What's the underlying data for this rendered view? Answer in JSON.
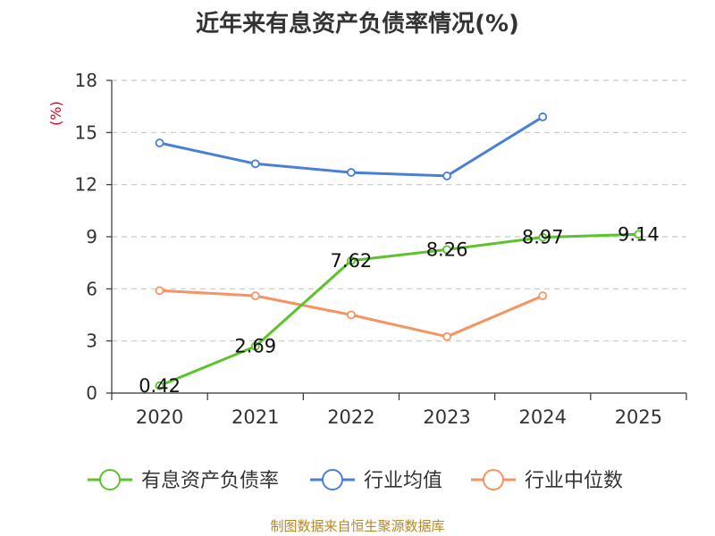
{
  "chart_data": {
    "type": "line",
    "title": "近年来有息资产负债率情况(%)",
    "ylabel": "(%)",
    "xlabel": "",
    "categories": [
      "2020",
      "2021",
      "2022",
      "2023",
      "2024",
      "2025"
    ],
    "ylim": [
      0,
      18
    ],
    "yticks": [
      0,
      3,
      6,
      9,
      12,
      15,
      18
    ],
    "grid": true,
    "legend_position": "bottom",
    "series": [
      {
        "name": "有息资产负债率",
        "color": "#5cc32d",
        "values": [
          0.42,
          2.69,
          7.62,
          8.26,
          8.97,
          9.14
        ],
        "labels": [
          "0.42",
          "2.69",
          "7.62",
          "8.26",
          "8.97",
          "9.14"
        ]
      },
      {
        "name": "行业均值",
        "color": "#4a7fd8",
        "values": [
          14.4,
          13.2,
          12.7,
          12.5,
          15.9,
          null
        ]
      },
      {
        "name": "行业中位数",
        "color": "#f59461",
        "values": [
          5.9,
          5.6,
          4.5,
          3.25,
          5.6,
          null
        ]
      }
    ]
  },
  "source_note": "制图数据来自恒生聚源数据库"
}
